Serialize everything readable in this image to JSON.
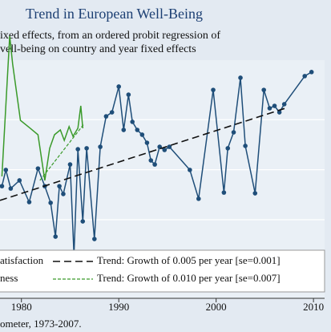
{
  "chart_data": {
    "type": "line",
    "title": "Trend in European Well-Being",
    "subtitle": [
      "ixed effects, from an ordered probit regression of",
      "vell-being on country and year fixed effects"
    ],
    "source": "ometer, 1973-2007.",
    "xlim": [
      1977.8,
      2011.8
    ],
    "xticks": [
      1980,
      1990,
      2000,
      2010
    ],
    "ylim": [
      0,
      100
    ],
    "yticks": [
      33,
      54,
      75
    ],
    "grid": true,
    "series": [
      {
        "name": "atisfaction",
        "color": "#1f4e79",
        "x": [
          1978.0,
          1978.4,
          1978.9,
          1979.8,
          1980.8,
          1981.7,
          1982.4,
          1983.0,
          1983.5,
          1983.9,
          1984.3,
          1985.0,
          1985.4,
          1985.8,
          1986.3,
          1986.7,
          1987.5,
          1988.1,
          1988.7,
          1989.3,
          1990.0,
          1990.5,
          1991.0,
          1991.4,
          1991.9,
          1992.4,
          1992.9,
          1993.3,
          1993.7,
          1994.2,
          1994.7,
          1995.2,
          1997.3,
          1998.2,
          1999.7,
          2000.8,
          2001.2,
          2001.8,
          2002.5,
          2003.0,
          2004.0,
          2004.9,
          2005.5,
          2006.0,
          2006.5,
          2007.0,
          2009.1,
          2009.8
        ],
        "values": [
          47.1,
          53.9,
          46.1,
          49.5,
          40.4,
          54.5,
          47.1,
          40.1,
          25.9,
          47.1,
          43.8,
          56.2,
          18.2,
          62.6,
          32.3,
          63.0,
          24.9,
          63.6,
          76.4,
          78.1,
          88.9,
          70.7,
          85.5,
          74.1,
          70.7,
          68.7,
          65.3,
          57.9,
          56.2,
          63.6,
          62.3,
          63.6,
          53.9,
          41.8,
          87.5,
          44.4,
          63.0,
          69.7,
          92.6,
          64.0,
          44.1,
          87.5,
          79.8,
          80.8,
          78.1,
          81.5,
          93.3,
          95.0
        ]
      },
      {
        "name": "ness",
        "color": "#3a9a2a",
        "x": [
          1978.0,
          1978.8,
          1979.1,
          1979.9,
          1980.9,
          1981.7,
          1982.4,
          1982.9,
          1983.4,
          1984.0,
          1984.4,
          1984.9,
          1985.3,
          1985.8,
          1986.1,
          1986.3
        ],
        "values": [
          51.2,
          110.1,
          98.3,
          74.7,
          71.4,
          68.7,
          49.5,
          63.0,
          68.7,
          70.7,
          66.3,
          72.1,
          68.0,
          71.4,
          80.8,
          71.4
        ]
      }
    ],
    "trends": [
      {
        "name": "Trend: Growth of 0.005 per year [se=0.001]",
        "color": "#111111",
        "x": [
          1977.8,
          2007.1
        ],
        "values": [
          41.1,
          79.8
        ]
      },
      {
        "name": "Trend: Growth of 0.010 per year [se=0.007]",
        "color": "#3a9a2a",
        "x": [
          1981.9,
          1986.4
        ],
        "values": [
          49.5,
          73.1
        ]
      }
    ]
  }
}
